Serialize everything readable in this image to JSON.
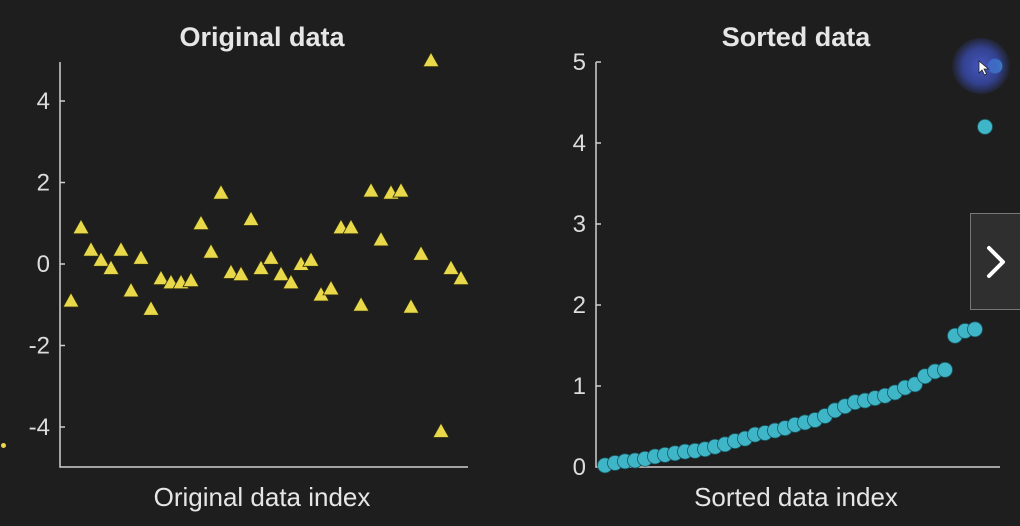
{
  "chart_data": [
    {
      "type": "scatter",
      "title": "Original data",
      "xlabel": "Original data index",
      "ylabel": "",
      "ylim": [
        -5,
        5
      ],
      "yticks": [
        "4",
        "2",
        "0",
        "-2",
        "-4"
      ],
      "ytick_values": [
        4,
        2,
        0,
        -2,
        -4
      ],
      "marker": "triangle",
      "color": "#e8d84a",
      "grid": false,
      "x": [
        1,
        2,
        3,
        4,
        5,
        6,
        7,
        8,
        9,
        10,
        11,
        12,
        13,
        14,
        15,
        16,
        17,
        18,
        19,
        20,
        21,
        22,
        23,
        24,
        25,
        26,
        27,
        28,
        29,
        30,
        31,
        32,
        33,
        34,
        35,
        36,
        37,
        38,
        39,
        40
      ],
      "y": [
        -0.9,
        0.9,
        0.35,
        0.1,
        -0.1,
        0.35,
        -0.65,
        0.15,
        -1.1,
        -0.35,
        -0.45,
        -0.45,
        -0.4,
        1.0,
        0.3,
        1.75,
        -0.2,
        -0.25,
        1.1,
        -0.1,
        0.15,
        -0.25,
        -0.45,
        0.0,
        0.1,
        -0.75,
        -0.6,
        0.9,
        0.9,
        -1.0,
        1.8,
        0.6,
        1.75,
        1.8,
        -1.05,
        0.25,
        5.0,
        -4.1,
        -0.1,
        -0.35
      ],
      "xlim": [
        0,
        41
      ]
    },
    {
      "type": "scatter",
      "title": "Sorted data",
      "xlabel": "Sorted data index",
      "ylabel": "",
      "ylim": [
        0,
        5
      ],
      "yticks": [
        "5",
        "4",
        "3",
        "2",
        "1",
        "0"
      ],
      "ytick_values": [
        5,
        4,
        3,
        2,
        1,
        0
      ],
      "marker": "circle",
      "color": "#3fb6c8",
      "grid": false,
      "x": [
        1,
        2,
        3,
        4,
        5,
        6,
        7,
        8,
        9,
        10,
        11,
        12,
        13,
        14,
        15,
        16,
        17,
        18,
        19,
        20,
        21,
        22,
        23,
        24,
        25,
        26,
        27,
        28,
        29,
        30,
        31,
        32,
        33,
        34,
        35,
        36,
        37,
        38,
        39,
        40
      ],
      "y": [
        0.02,
        0.05,
        0.07,
        0.08,
        0.1,
        0.13,
        0.15,
        0.17,
        0.19,
        0.2,
        0.22,
        0.25,
        0.28,
        0.32,
        0.35,
        0.4,
        0.42,
        0.45,
        0.48,
        0.52,
        0.55,
        0.58,
        0.63,
        0.7,
        0.75,
        0.8,
        0.82,
        0.85,
        0.88,
        0.92,
        0.98,
        1.02,
        1.12,
        1.18,
        1.2,
        1.62,
        1.68,
        1.7,
        4.2,
        4.95
      ],
      "xlim": [
        0,
        41
      ]
    }
  ],
  "ui": {
    "next_icon": "chevron-right-icon",
    "cursor_icon": "mouse-pointer-icon"
  }
}
